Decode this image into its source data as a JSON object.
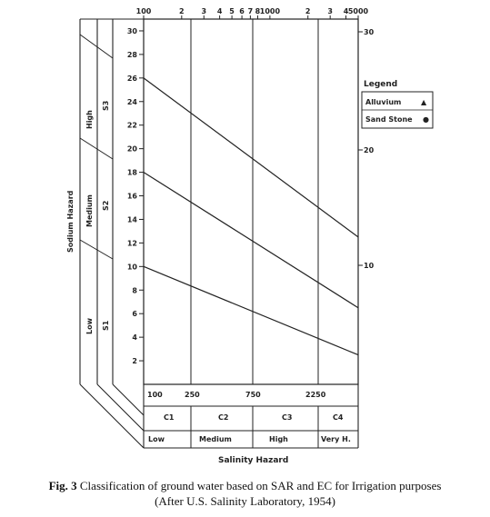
{
  "axes": {
    "top_ticks": [
      "100",
      "2",
      "3",
      "4",
      "5",
      "6",
      "7",
      "8",
      "1000",
      "2",
      "3",
      "4",
      "5000"
    ],
    "left_ticks": [
      "30",
      "28",
      "26",
      "24",
      "22",
      "20",
      "18",
      "16",
      "14",
      "12",
      "10",
      "8",
      "6",
      "4",
      "2"
    ],
    "right_ticks": [
      "30",
      "20",
      "10"
    ],
    "bottom_ticks": [
      "100",
      "250",
      "750",
      "2250"
    ]
  },
  "sodium_hazard": {
    "title": "Sodium Hazard",
    "classes": [
      {
        "level": "High",
        "code": "S3"
      },
      {
        "level": "Medium",
        "code": "S2"
      },
      {
        "level": "Low",
        "code": "S1"
      }
    ]
  },
  "salinity_hazard": {
    "title": "Salinity Hazard",
    "classes": [
      {
        "code": "C1",
        "level": "Low"
      },
      {
        "code": "C2",
        "level": "Medium"
      },
      {
        "code": "C3",
        "level": "High"
      },
      {
        "code": "C4",
        "level": "Very H."
      }
    ]
  },
  "legend": {
    "title": "Legend",
    "items": [
      {
        "label": "Alluvium",
        "symbol": "▲"
      },
      {
        "label": "Sand Stone",
        "symbol": "●"
      }
    ]
  },
  "caption": {
    "fig_label": "Fig. 3",
    "text_line1": "Classification of ground water based on SAR and EC for Irrigation purposes",
    "text_line2": "(After U.S. Salinity Laboratory, 1954)"
  },
  "chart_data": {
    "type": "line",
    "x_scale": "log",
    "xlim": [
      100,
      5000
    ],
    "ylim": [
      0,
      31
    ],
    "x_breaks": [
      250,
      750,
      2250
    ],
    "series": [
      {
        "x": [
          100,
          5000
        ],
        "y": [
          26,
          12.5
        ]
      },
      {
        "x": [
          100,
          5000
        ],
        "y": [
          18,
          6.5
        ]
      },
      {
        "x": [
          100,
          5000
        ],
        "y": [
          10,
          2.5
        ]
      }
    ]
  }
}
